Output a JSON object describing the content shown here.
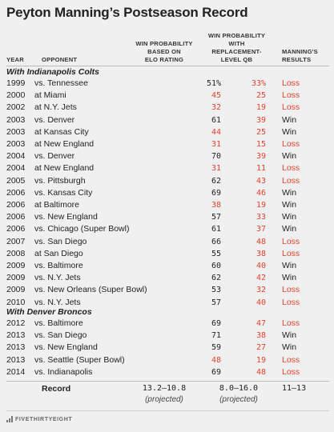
{
  "title": "Peyton Manning’s Postseason Record",
  "headers": {
    "year": "YEAR",
    "opponent": "OPPONENT",
    "elo_l1": "WIN PROBABILITY",
    "elo_l2": "BASED ON",
    "elo_l3": "ELO RATING",
    "rep_l1": "WIN PROBABILITY",
    "rep_l2": "WITH",
    "rep_l3": "REPLACEMENT-",
    "rep_l4": "LEVEL QB",
    "res_l1": "MANNING'S",
    "res_l2": "RESULTS"
  },
  "sections": {
    "colts": "With Indianapolis Colts",
    "broncos": "With Denver Broncos"
  },
  "colts_rows": [
    {
      "year": "1999",
      "opponent": "vs. Tennessee",
      "elo": "51%",
      "rep": "33%",
      "result": "Loss"
    },
    {
      "year": "2000",
      "opponent": "at Miami",
      "elo": "45",
      "rep": "25",
      "result": "Loss"
    },
    {
      "year": "2002",
      "opponent": "at N.Y. Jets",
      "elo": "32",
      "rep": "19",
      "result": "Loss"
    },
    {
      "year": "2003",
      "opponent": "vs. Denver",
      "elo": "61",
      "rep": "39",
      "result": "Win"
    },
    {
      "year": "2003",
      "opponent": "at Kansas City",
      "elo": "44",
      "rep": "25",
      "result": "Win"
    },
    {
      "year": "2003",
      "opponent": "at New England",
      "elo": "31",
      "rep": "15",
      "result": "Loss"
    },
    {
      "year": "2004",
      "opponent": "vs. Denver",
      "elo": "70",
      "rep": "39",
      "result": "Win"
    },
    {
      "year": "2004",
      "opponent": "at New England",
      "elo": "31",
      "rep": "11",
      "result": "Loss"
    },
    {
      "year": "2005",
      "opponent": "vs. Pittsburgh",
      "elo": "62",
      "rep": "43",
      "result": "Loss"
    },
    {
      "year": "2006",
      "opponent": "vs. Kansas City",
      "elo": "69",
      "rep": "46",
      "result": "Win"
    },
    {
      "year": "2006",
      "opponent": "at Baltimore",
      "elo": "38",
      "rep": "19",
      "result": "Win"
    },
    {
      "year": "2006",
      "opponent": "vs. New England",
      "elo": "57",
      "rep": "33",
      "result": "Win"
    },
    {
      "year": "2006",
      "opponent": "vs. Chicago (Super Bowl)",
      "elo": "61",
      "rep": "37",
      "result": "Win"
    },
    {
      "year": "2007",
      "opponent": "vs. San Diego",
      "elo": "66",
      "rep": "48",
      "result": "Loss"
    },
    {
      "year": "2008",
      "opponent": "at San Diego",
      "elo": "55",
      "rep": "38",
      "result": "Loss"
    },
    {
      "year": "2009",
      "opponent": "vs. Baltimore",
      "elo": "60",
      "rep": "40",
      "result": "Win"
    },
    {
      "year": "2009",
      "opponent": "vs. N.Y. Jets",
      "elo": "62",
      "rep": "42",
      "result": "Win"
    },
    {
      "year": "2009",
      "opponent": "vs. New Orleans (Super Bowl)",
      "elo": "53",
      "rep": "32",
      "result": "Loss"
    },
    {
      "year": "2010",
      "opponent": "vs. N.Y. Jets",
      "elo": "57",
      "rep": "40",
      "result": "Loss"
    }
  ],
  "broncos_rows": [
    {
      "year": "2012",
      "opponent": "vs. Baltimore",
      "elo": "69",
      "rep": "47",
      "result": "Loss"
    },
    {
      "year": "2013",
      "opponent": "vs. San Diego",
      "elo": "71",
      "rep": "38",
      "result": "Win"
    },
    {
      "year": "2013",
      "opponent": "vs. New England",
      "elo": "59",
      "rep": "27",
      "result": "Win"
    },
    {
      "year": "2013",
      "opponent": "vs. Seattle (Super Bowl)",
      "elo": "48",
      "rep": "19",
      "result": "Loss"
    },
    {
      "year": "2014",
      "opponent": "vs. Indianapolis",
      "elo": "69",
      "rep": "48",
      "result": "Loss"
    }
  ],
  "record": {
    "label": "Record",
    "elo": "13.2–10.8",
    "elo_sub": "(projected)",
    "rep": "8.0–16.0",
    "rep_sub": "(projected)",
    "result": "11–13"
  },
  "footer": "FIVETHIRTYEIGHT",
  "colors": {
    "red": "#e8412c",
    "text": "#222222",
    "background": "#f0f0f0"
  }
}
